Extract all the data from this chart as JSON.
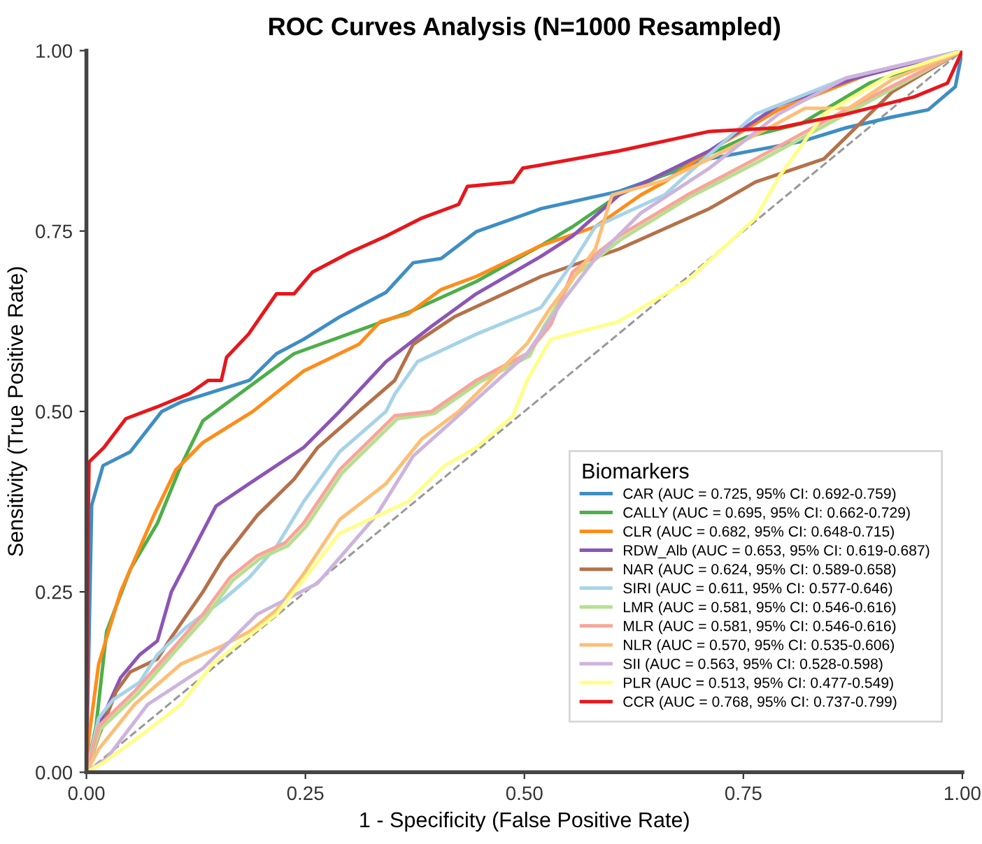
{
  "chart_data": {
    "type": "line",
    "title": "ROC Curves Analysis (N=1000 Resampled)",
    "xlabel": "1 - Specificity (False Positive Rate)",
    "ylabel": "Sensitivity (True Positive Rate)",
    "legend_title": "Biomarkers",
    "legend": "bottom right",
    "grid": false,
    "marker": "none",
    "xlim": [
      0,
      1
    ],
    "ylim": [
      0,
      1
    ],
    "xticks": [
      {
        "value": 0,
        "label": "0.00"
      },
      {
        "value": 0.25,
        "label": "0.25"
      },
      {
        "value": 0.5,
        "label": "0.50"
      },
      {
        "value": 0.75,
        "label": "0.75"
      },
      {
        "value": 1,
        "label": "1.00"
      }
    ],
    "yticks": [
      {
        "value": 0,
        "label": "0.00"
      },
      {
        "value": 0.25,
        "label": "0.25"
      },
      {
        "value": 0.5,
        "label": "0.50"
      },
      {
        "value": 0.75,
        "label": "0.75"
      },
      {
        "value": 1,
        "label": "1.00"
      }
    ],
    "series": [
      {
        "x": [
          0,
          1
        ],
        "values": [
          0,
          1
        ],
        "color": "#999999",
        "line_style": "dashed"
      },
      {
        "name": "CAR (AUC = 0.725, 95% CI: 0.692-0.759)",
        "color": "#3e8ec4",
        "x": [
          0,
          0.006,
          0.019,
          0.05,
          0.086,
          0.108,
          0.186,
          0.217,
          0.248,
          0.289,
          0.342,
          0.373,
          0.405,
          0.445,
          0.519,
          0.608,
          0.711,
          0.816,
          0.867,
          0.92,
          0.961,
          0.992,
          1
        ],
        "values": [
          0,
          0.37,
          0.425,
          0.444,
          0.5,
          0.513,
          0.543,
          0.58,
          0.6,
          0.631,
          0.665,
          0.706,
          0.712,
          0.749,
          0.781,
          0.805,
          0.85,
          0.874,
          0.893,
          0.908,
          0.918,
          0.95,
          1
        ]
      },
      {
        "name": "CALLY (AUC = 0.695, 95% CI: 0.662-0.729)",
        "color": "#4daf4a",
        "x": [
          0,
          0.011,
          0.023,
          0.05,
          0.081,
          0.108,
          0.133,
          0.237,
          0.367,
          0.445,
          0.519,
          0.555,
          0.608,
          0.686,
          0.753,
          0.816,
          0.894,
          1
        ],
        "values": [
          0,
          0.064,
          0.195,
          0.281,
          0.345,
          0.425,
          0.487,
          0.58,
          0.637,
          0.68,
          0.73,
          0.756,
          0.8,
          0.843,
          0.88,
          0.899,
          0.955,
          1
        ]
      },
      {
        "name": "CLR (AUC = 0.682, 95% CI: 0.648-0.715)",
        "color": "#ff8c1a",
        "x": [
          0,
          0.003,
          0.014,
          0.039,
          0.077,
          0.102,
          0.133,
          0.19,
          0.248,
          0.311,
          0.336,
          0.367,
          0.405,
          0.445,
          0.519,
          0.581,
          0.633,
          0.66,
          0.711,
          0.79,
          0.894,
          1
        ],
        "values": [
          0,
          0.05,
          0.15,
          0.25,
          0.356,
          0.419,
          0.457,
          0.5,
          0.556,
          0.593,
          0.625,
          0.635,
          0.669,
          0.687,
          0.73,
          0.756,
          0.8,
          0.818,
          0.861,
          0.918,
          0.968,
          1
        ]
      },
      {
        "name": "RDW_Alb (AUC = 0.653, 95% CI: 0.619-0.687)",
        "color": "#8c55b5",
        "x": [
          0,
          0.014,
          0.039,
          0.061,
          0.081,
          0.097,
          0.148,
          0.186,
          0.248,
          0.289,
          0.342,
          0.394,
          0.445,
          0.519,
          0.555,
          0.608,
          0.711,
          0.79,
          0.878,
          0.945,
          1
        ],
        "values": [
          0,
          0.064,
          0.131,
          0.163,
          0.182,
          0.25,
          0.369,
          0.4,
          0.45,
          0.5,
          0.569,
          0.618,
          0.663,
          0.715,
          0.743,
          0.8,
          0.861,
          0.924,
          0.962,
          0.983,
          1
        ]
      },
      {
        "name": "NAR (AUC = 0.624, 95% CI: 0.589-0.658)",
        "color": "#b5714a",
        "x": [
          0,
          0.014,
          0.034,
          0.05,
          0.081,
          0.097,
          0.133,
          0.155,
          0.195,
          0.237,
          0.264,
          0.311,
          0.352,
          0.373,
          0.42,
          0.519,
          0.608,
          0.711,
          0.764,
          0.842,
          0.92,
          1
        ],
        "values": [
          0,
          0.05,
          0.112,
          0.139,
          0.157,
          0.187,
          0.25,
          0.294,
          0.356,
          0.406,
          0.45,
          0.5,
          0.543,
          0.593,
          0.631,
          0.687,
          0.725,
          0.781,
          0.818,
          0.85,
          0.943,
          1
        ]
      },
      {
        "name": "SIRI (AUC = 0.611, 95% CI: 0.577-0.646)",
        "color": "#a6d3e8",
        "x": [
          0,
          0.014,
          0.03,
          0.061,
          0.081,
          0.113,
          0.155,
          0.186,
          0.217,
          0.248,
          0.289,
          0.342,
          0.352,
          0.378,
          0.445,
          0.519,
          0.555,
          0.581,
          0.66,
          0.711,
          0.764,
          0.867,
          1
        ],
        "values": [
          0,
          0.075,
          0.1,
          0.125,
          0.163,
          0.2,
          0.238,
          0.27,
          0.313,
          0.375,
          0.444,
          0.5,
          0.524,
          0.569,
          0.607,
          0.644,
          0.706,
          0.756,
          0.8,
          0.856,
          0.912,
          0.962,
          1
        ]
      },
      {
        "name": "LMR (AUC = 0.581, 95% CI: 0.546-0.616)",
        "color": "#b5e08f",
        "x": [
          0,
          0.016,
          0.058,
          0.1,
          0.136,
          0.167,
          0.198,
          0.23,
          0.251,
          0.292,
          0.355,
          0.397,
          0.448,
          0.506,
          0.522,
          0.558,
          0.611,
          0.689,
          0.767,
          0.87,
          1
        ],
        "values": [
          0,
          0.06,
          0.108,
          0.166,
          0.215,
          0.266,
          0.296,
          0.314,
          0.341,
          0.415,
          0.49,
          0.497,
          0.54,
          0.577,
          0.617,
          0.689,
          0.739,
          0.797,
          0.846,
          0.914,
          1
        ]
      },
      {
        "name": "MLR (AUC = 0.581, 95% CI: 0.546-0.616)",
        "color": "#f7a59a",
        "x": [
          0,
          0.014,
          0.055,
          0.097,
          0.133,
          0.164,
          0.195,
          0.227,
          0.248,
          0.289,
          0.352,
          0.394,
          0.445,
          0.503,
          0.53,
          0.555,
          0.608,
          0.686,
          0.764,
          0.867,
          1
        ],
        "values": [
          0,
          0.064,
          0.112,
          0.169,
          0.219,
          0.27,
          0.3,
          0.318,
          0.345,
          0.419,
          0.494,
          0.5,
          0.543,
          0.58,
          0.62,
          0.693,
          0.743,
          0.8,
          0.85,
          0.918,
          1
        ]
      },
      {
        "name": "NLR (AUC = 0.570, 95% CI: 0.535-0.606)",
        "color": "#fdbf75",
        "x": [
          0,
          0.014,
          0.055,
          0.108,
          0.155,
          0.186,
          0.217,
          0.248,
          0.289,
          0.342,
          0.383,
          0.425,
          0.503,
          0.53,
          0.581,
          0.6,
          0.66,
          0.711,
          0.79,
          0.82,
          0.87,
          0.92,
          1
        ],
        "values": [
          0,
          0.032,
          0.094,
          0.15,
          0.175,
          0.195,
          0.225,
          0.275,
          0.35,
          0.4,
          0.462,
          0.5,
          0.594,
          0.644,
          0.725,
          0.8,
          0.82,
          0.85,
          0.9,
          0.92,
          0.92,
          0.96,
          1
        ]
      },
      {
        "name": "SII (AUC = 0.563, 95% CI: 0.528-0.598)",
        "color": "#cdb4dd",
        "x": [
          0,
          0.023,
          0.07,
          0.133,
          0.195,
          0.264,
          0.331,
          0.373,
          0.43,
          0.503,
          0.545,
          0.581,
          0.633,
          0.711,
          0.79,
          0.867,
          1
        ],
        "values": [
          0,
          0.019,
          0.094,
          0.144,
          0.219,
          0.262,
          0.356,
          0.438,
          0.5,
          0.58,
          0.655,
          0.712,
          0.775,
          0.837,
          0.912,
          0.962,
          1
        ]
      },
      {
        "name": "PLR (AUC = 0.513, 95% CI: 0.477-0.549)",
        "color": "#ffff88",
        "x": [
          0,
          0.019,
          0.061,
          0.108,
          0.144,
          0.217,
          0.289,
          0.367,
          0.409,
          0.445,
          0.487,
          0.503,
          0.53,
          0.608,
          0.686,
          0.764,
          0.79,
          0.842,
          0.92,
          1
        ],
        "values": [
          0,
          0.013,
          0.05,
          0.094,
          0.15,
          0.219,
          0.331,
          0.375,
          0.425,
          0.45,
          0.494,
          0.543,
          0.6,
          0.625,
          0.681,
          0.768,
          0.824,
          0.912,
          0.968,
          1
        ]
      },
      {
        "name": "CCR (AUC = 0.768, 95% CI: 0.737-0.799)",
        "color": "#e8161b",
        "x": [
          0,
          0.002,
          0.003,
          0.02,
          0.045,
          0.08,
          0.118,
          0.139,
          0.154,
          0.16,
          0.185,
          0.217,
          0.237,
          0.258,
          0.3,
          0.342,
          0.383,
          0.425,
          0.435,
          0.487,
          0.498,
          0.608,
          0.711,
          0.79,
          0.867,
          0.945,
          0.983,
          1
        ],
        "values": [
          0,
          0.35,
          0.43,
          0.45,
          0.49,
          0.506,
          0.525,
          0.543,
          0.543,
          0.575,
          0.607,
          0.663,
          0.663,
          0.693,
          0.72,
          0.743,
          0.768,
          0.787,
          0.812,
          0.818,
          0.837,
          0.861,
          0.888,
          0.893,
          0.912,
          0.936,
          0.955,
          1
        ]
      }
    ]
  }
}
